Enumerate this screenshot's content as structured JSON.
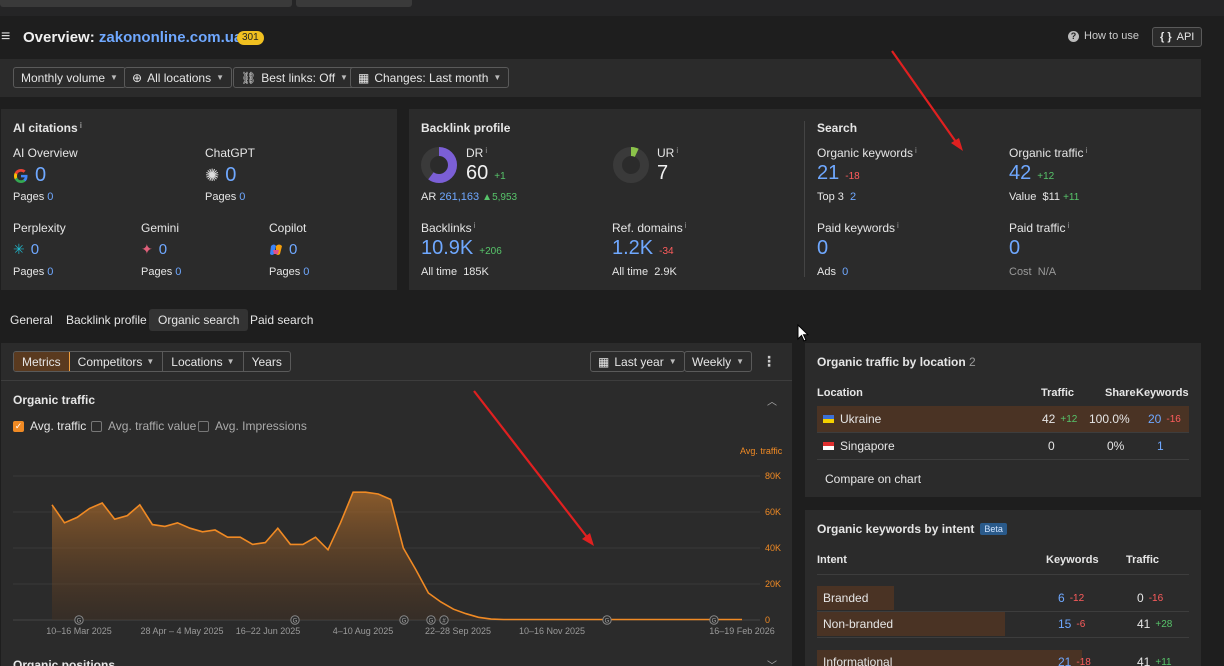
{
  "header": {
    "title_prefix": "Overview:",
    "domain": "zakononline.com.ua/",
    "badge": "301",
    "how_to_use": "How to use",
    "api": "API"
  },
  "filters": {
    "monthly_volume": "Monthly volume",
    "all_locations": "All locations",
    "best_links": "Best links: Off",
    "changes": "Changes: Last month"
  },
  "ai_citations": {
    "title": "AI citations",
    "sup": "i",
    "ai_overview": {
      "label": "AI Overview",
      "value": "0",
      "pages_label": "Pages",
      "pages": "0"
    },
    "chatgpt": {
      "label": "ChatGPT",
      "value": "0",
      "pages_label": "Pages",
      "pages": "0"
    },
    "perplexity": {
      "label": "Perplexity",
      "value": "0",
      "pages_label": "Pages",
      "pages": "0"
    },
    "gemini": {
      "label": "Gemini",
      "value": "0",
      "pages_label": "Pages",
      "pages": "0"
    },
    "copilot": {
      "label": "Copilot",
      "value": "0",
      "pages_label": "Pages",
      "pages": "0"
    }
  },
  "backlink_profile": {
    "title": "Backlink profile",
    "dr": {
      "label": "DR",
      "sup": "i",
      "value": "60",
      "delta": "+1",
      "ar_label": "AR",
      "ar_value": "261,163",
      "ar_delta": "▲5,953"
    },
    "ur": {
      "label": "UR",
      "sup": "i",
      "value": "7"
    },
    "backlinks": {
      "label": "Backlinks",
      "sup": "i",
      "value": "10.9K",
      "delta": "+206",
      "alltime_label": "All time",
      "alltime": "185K"
    },
    "ref_domains": {
      "label": "Ref. domains",
      "sup": "i",
      "value": "1.2K",
      "delta": "-34",
      "alltime_label": "All time",
      "alltime": "2.9K"
    }
  },
  "search": {
    "title": "Search",
    "organic_keywords": {
      "label": "Organic keywords",
      "sup": "i",
      "value": "21",
      "delta": "-18",
      "top3_label": "Top 3",
      "top3": "2"
    },
    "organic_traffic": {
      "label": "Organic traffic",
      "sup": "i",
      "value": "42",
      "delta": "+12",
      "value_label": "Value",
      "value_amount": "$11",
      "value_delta": "+11"
    },
    "paid_keywords": {
      "label": "Paid keywords",
      "sup": "i",
      "value": "0",
      "ads_label": "Ads",
      "ads": "0"
    },
    "paid_traffic": {
      "label": "Paid traffic",
      "sup": "i",
      "value": "0",
      "cost_label": "Cost",
      "cost": "N/A"
    }
  },
  "tabs": [
    "General",
    "Backlink profile",
    "Organic search",
    "Paid search"
  ],
  "chart_controls": {
    "metrics": "Metrics",
    "competitors": "Competitors",
    "locations": "Locations",
    "years": "Years",
    "last_year": "Last year",
    "weekly": "Weekly"
  },
  "organic_traffic_panel": {
    "title": "Organic traffic",
    "avg_traffic": "Avg. traffic",
    "avg_traffic_value": "Avg. traffic value",
    "avg_impressions": "Avg. Impressions",
    "axis_title": "Avg. traffic",
    "next_section": "Organic positions"
  },
  "chart_data": {
    "type": "area",
    "title": "Organic traffic",
    "series": [
      {
        "name": "Avg. traffic",
        "values": [
          64000,
          54000,
          57000,
          62000,
          65000,
          56000,
          58000,
          64000,
          53000,
          52000,
          54000,
          51000,
          49000,
          50000,
          46000,
          46000,
          42000,
          43000,
          51000,
          42000,
          42000,
          46000,
          39000,
          54000,
          71000,
          71000,
          70000,
          67000,
          40000,
          28000,
          15000,
          10000,
          6000,
          3500,
          1500,
          500,
          300,
          300,
          300,
          300,
          300,
          300,
          300,
          300,
          300,
          300,
          300,
          300,
          300,
          300,
          300,
          300,
          300,
          300,
          300,
          300
        ]
      }
    ],
    "x_tick_labels": [
      "10–16 Mar 2025",
      "28 Apr – 4 May 2025",
      "16–22 Jun 2025",
      "4–10 Aug 2025",
      "22–28 Sep 2025",
      "10–16 Nov 2025",
      "16–19 Feb 2026"
    ],
    "y_tick_labels": [
      "80K",
      "60K",
      "40K",
      "20K",
      "0"
    ],
    "ylim": [
      0,
      80000
    ],
    "grid": true,
    "annotation_marker": "G",
    "annotation_marker_alt": "#"
  },
  "traffic_by_location": {
    "title": "Organic traffic by location",
    "count": "2",
    "columns": [
      "Location",
      "Traffic",
      "Share",
      "Keywords"
    ],
    "rows": [
      {
        "flag": "ua",
        "location": "Ukraine",
        "traffic": "42",
        "traffic_delta": "+12",
        "share": "100.0%",
        "keywords": "20",
        "keywords_delta": "-16"
      },
      {
        "flag": "sg",
        "location": "Singapore",
        "traffic": "0",
        "traffic_delta": "",
        "share": "0%",
        "keywords": "1",
        "keywords_delta": ""
      }
    ],
    "compare": "Compare on chart"
  },
  "keywords_by_intent": {
    "title": "Organic keywords by intent",
    "beta": "Beta",
    "columns": [
      "Intent",
      "Keywords",
      "Traffic"
    ],
    "rows": [
      {
        "intent": "Branded",
        "keywords": "6",
        "keywords_delta": "-12",
        "traffic": "0",
        "traffic_delta": "-16",
        "share": 0.29
      },
      {
        "intent": "Non-branded",
        "keywords": "15",
        "keywords_delta": "-6",
        "traffic": "41",
        "traffic_delta": "+28",
        "share": 0.71
      },
      {
        "intent": "Informational",
        "keywords": "21",
        "keywords_delta": "-18",
        "traffic": "41",
        "traffic_delta": "+11",
        "share": 1.0
      }
    ]
  }
}
